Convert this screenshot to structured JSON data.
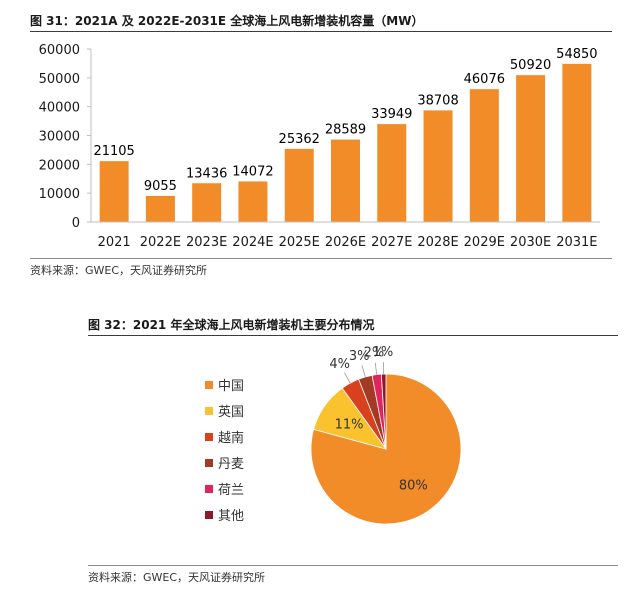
{
  "figure1": {
    "title": "图 31：2021A 及 2022E-2031E 全球海上风电新增装机容量（MW）",
    "source": "资料来源：GWEC，天风证券研究所"
  },
  "figure2": {
    "title": "图 32：2021 年全球海上风电新增装机主要分布情况",
    "source": "资料来源：GWEC，天风证券研究所"
  },
  "chart_data": [
    {
      "type": "bar",
      "title": "2021A 及 2022E-2031E 全球海上风电新增装机容量（MW）",
      "categories": [
        "2021",
        "2022E",
        "2023E",
        "2024E",
        "2025E",
        "2026E",
        "2027E",
        "2028E",
        "2029E",
        "2030E",
        "2031E"
      ],
      "values": [
        21105,
        9055,
        13436,
        14072,
        25362,
        28589,
        33949,
        38708,
        46076,
        50920,
        54850
      ],
      "ylim": [
        0,
        60000
      ],
      "yticks": [
        0,
        10000,
        20000,
        30000,
        40000,
        50000,
        60000
      ],
      "xlabel": "",
      "ylabel": "",
      "color": "#F28C28",
      "grid": false
    },
    {
      "type": "pie",
      "title": "2021 年全球海上风电新增装机主要分布情况",
      "labels": [
        "中国",
        "英国",
        "越南",
        "丹麦",
        "荷兰",
        "其他"
      ],
      "values": [
        80,
        11,
        4,
        3,
        2,
        1
      ],
      "value_labels": [
        "80%",
        "11%",
        "4%",
        "3%",
        "2%",
        "1%"
      ],
      "colors": [
        "#F28C28",
        "#F9C22E",
        "#D9411E",
        "#A33A24",
        "#E0245E",
        "#8B1A2B"
      ],
      "legend": "left"
    }
  ]
}
